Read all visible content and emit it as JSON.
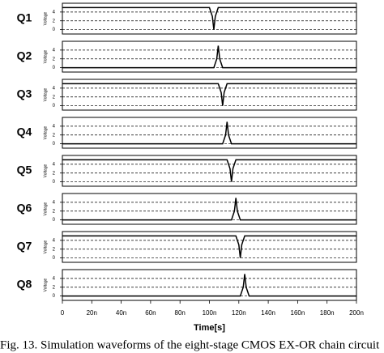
{
  "chart_data": [
    {
      "type": "line",
      "title": "Q1",
      "ylabel": "Voltage",
      "x": [
        0,
        100,
        102,
        103,
        104,
        106,
        200
      ],
      "values": [
        5,
        5,
        3,
        0,
        3,
        5,
        5
      ],
      "xlim": [
        0,
        200
      ],
      "ylim": [
        -1,
        6
      ],
      "yticks": [
        0,
        2,
        4
      ],
      "grid": true,
      "color": "#000000"
    },
    {
      "type": "line",
      "title": "Q2",
      "ylabel": "Voltage",
      "x": [
        0,
        103,
        105,
        106,
        107,
        109,
        200
      ],
      "values": [
        0,
        0,
        2,
        5,
        2,
        0,
        0
      ],
      "xlim": [
        0,
        200
      ],
      "ylim": [
        -1,
        6
      ],
      "yticks": [
        0,
        2,
        4
      ],
      "grid": true,
      "color": "#000000"
    },
    {
      "type": "line",
      "title": "Q3",
      "ylabel": "Voltage",
      "x": [
        0,
        106,
        108,
        109,
        110,
        112,
        200
      ],
      "values": [
        5,
        5,
        3,
        0,
        3,
        5,
        5
      ],
      "xlim": [
        0,
        200
      ],
      "ylim": [
        -1,
        6
      ],
      "yticks": [
        0,
        2,
        4
      ],
      "grid": true,
      "color": "#000000"
    },
    {
      "type": "line",
      "title": "Q4",
      "ylabel": "Voltage",
      "x": [
        0,
        109,
        111,
        112,
        113,
        115,
        200
      ],
      "values": [
        0,
        0,
        2,
        5,
        2,
        0,
        0
      ],
      "xlim": [
        0,
        200
      ],
      "ylim": [
        -1,
        6
      ],
      "yticks": [
        0,
        2,
        4
      ],
      "grid": true,
      "color": "#000000"
    },
    {
      "type": "line",
      "title": "Q5",
      "ylabel": "Voltage",
      "x": [
        0,
        112,
        114,
        115,
        116,
        118,
        200
      ],
      "values": [
        5,
        5,
        3,
        0,
        3,
        5,
        5
      ],
      "xlim": [
        0,
        200
      ],
      "ylim": [
        -1,
        6
      ],
      "yticks": [
        0,
        2,
        4
      ],
      "grid": true,
      "color": "#000000"
    },
    {
      "type": "line",
      "title": "Q6",
      "ylabel": "Voltage",
      "x": [
        0,
        115,
        117,
        118,
        119,
        121,
        200
      ],
      "values": [
        0,
        0,
        2,
        5,
        2,
        0,
        0
      ],
      "xlim": [
        0,
        200
      ],
      "ylim": [
        -1,
        6
      ],
      "yticks": [
        0,
        2,
        4
      ],
      "grid": true,
      "color": "#000000"
    },
    {
      "type": "line",
      "title": "Q7",
      "ylabel": "Voltage",
      "x": [
        0,
        118,
        120,
        121,
        122,
        124,
        200
      ],
      "values": [
        5,
        5,
        3,
        0,
        3,
        5,
        5
      ],
      "xlim": [
        0,
        200
      ],
      "ylim": [
        -1,
        6
      ],
      "yticks": [
        0,
        2,
        4
      ],
      "grid": true,
      "color": "#000000"
    },
    {
      "type": "line",
      "title": "Q8",
      "ylabel": "Voltage",
      "x": [
        0,
        121,
        123,
        124,
        125,
        127,
        200
      ],
      "values": [
        0,
        0,
        2,
        5,
        2,
        0,
        0
      ],
      "xlim": [
        0,
        200
      ],
      "ylim": [
        -1,
        6
      ],
      "yticks": [
        0,
        2,
        4
      ],
      "grid": true,
      "color": "#000000",
      "xlabel": "Time[s]",
      "xticks": [
        0,
        {
          "value": 20,
          "label": "20n"
        },
        {
          "value": 40,
          "label": "40n"
        },
        {
          "value": 60,
          "label": "60n"
        },
        {
          "value": 80,
          "label": "80n"
        },
        {
          "value": 100,
          "label": "100n"
        },
        {
          "value": 120,
          "label": "120n"
        },
        {
          "value": 140,
          "label": "140n"
        },
        {
          "value": 160,
          "label": "160n"
        },
        {
          "value": 180,
          "label": "180n"
        },
        {
          "value": 200,
          "label": "200n"
        }
      ]
    }
  ],
  "caption": "Fig. 13. Simulation waveforms of the eight-stage CMOS EX-OR chain circuit"
}
